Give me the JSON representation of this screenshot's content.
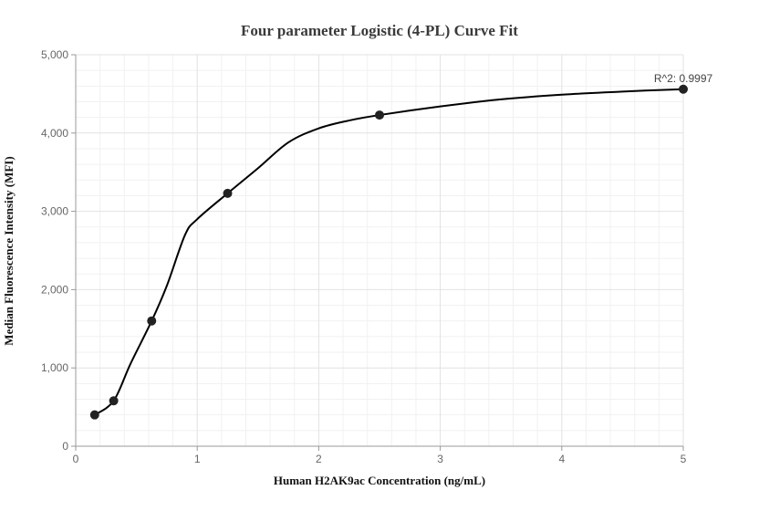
{
  "chart_data": {
    "type": "scatter",
    "title": "Four parameter Logistic (4-PL) Curve Fit",
    "xlabel": "Human H2AK9ac Concentration (ng/mL)",
    "ylabel": "Median Fluorescence Intensity (MFI)",
    "xlim": [
      0,
      5
    ],
    "ylim": [
      0,
      5000
    ],
    "x_ticks": [
      0,
      1,
      2,
      3,
      4,
      5
    ],
    "x_tick_labels": [
      "0",
      "1",
      "2",
      "3",
      "4",
      "5"
    ],
    "y_ticks": [
      0,
      1000,
      2000,
      3000,
      4000,
      5000
    ],
    "y_tick_labels": [
      "0",
      "1,000",
      "2,000",
      "3,000",
      "4,000",
      "5,000"
    ],
    "grid": true,
    "annotation": "R^2: 0.9997",
    "points": {
      "x": [
        0.156,
        0.3125,
        0.625,
        1.25,
        2.5,
        5
      ],
      "y": [
        400,
        580,
        1600,
        3230,
        4230,
        4560
      ]
    },
    "fit_curve": {
      "x": [
        0.156,
        0.3125,
        0.45,
        0.625,
        0.75,
        0.9,
        1.0,
        1.25,
        1.5,
        1.75,
        2.0,
        2.25,
        2.5,
        3.0,
        3.5,
        4.0,
        4.5,
        5.0
      ],
      "y": [
        400,
        580,
        1050,
        1600,
        2050,
        2700,
        2900,
        3230,
        3550,
        3880,
        4060,
        4160,
        4230,
        4340,
        4430,
        4490,
        4530,
        4560
      ]
    },
    "colors": {
      "points": "#222222",
      "curve": "#000000"
    }
  }
}
